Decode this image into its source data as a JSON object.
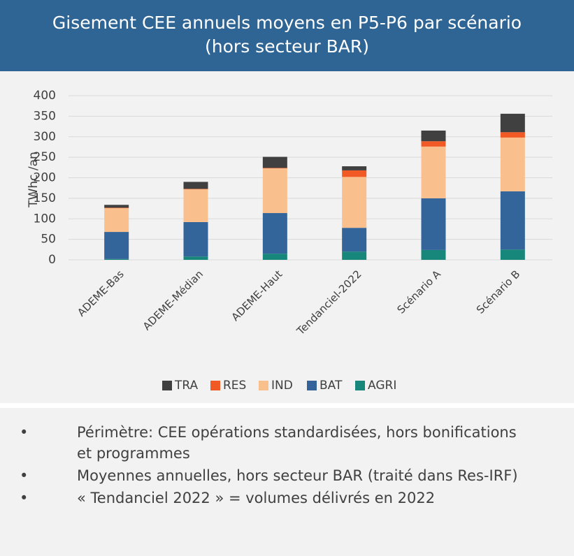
{
  "chart_data": {
    "type": "stacked_bar",
    "title": "Gisement CEE annuels moyens en P5-P6 par scénario",
    "subtitle": "(hors secteur BAR)",
    "y_label": "TWhc /an",
    "categories": [
      "ADEME-Bas",
      "ADEME-Médian",
      "ADEME-Haut",
      "Tendanciel-2022",
      "Scénario A",
      "Scénario B"
    ],
    "series": [
      {
        "name": "TRA",
        "color": "#404040",
        "values": [
          7,
          17,
          27,
          10,
          26,
          45
        ]
      },
      {
        "name": "RES",
        "color": "#f15a24",
        "values": [
          1,
          1,
          1,
          16,
          13,
          13
        ]
      },
      {
        "name": "IND",
        "color": "#f9c08e",
        "values": [
          58,
          80,
          109,
          124,
          126,
          131
        ]
      },
      {
        "name": "BAT",
        "color": "#33649a",
        "values": [
          66,
          84,
          99,
          58,
          126,
          142
        ]
      },
      {
        "name": "AGRI",
        "color": "#16877a",
        "values": [
          2,
          8,
          15,
          20,
          24,
          25
        ]
      }
    ],
    "ylim": [
      0,
      400
    ],
    "yticks": [
      0,
      50,
      100,
      150,
      200,
      250,
      300,
      350,
      400
    ],
    "grid": true,
    "legend": "bottom"
  },
  "notes": [
    "Périmètre: CEE opérations standardisées, hors bonifications et programmes",
    "Moyennes annuelles, hors secteur BAR (traité dans Res-IRF)",
    "« Tendanciel 2022 » = volumes délivrés en 2022"
  ]
}
